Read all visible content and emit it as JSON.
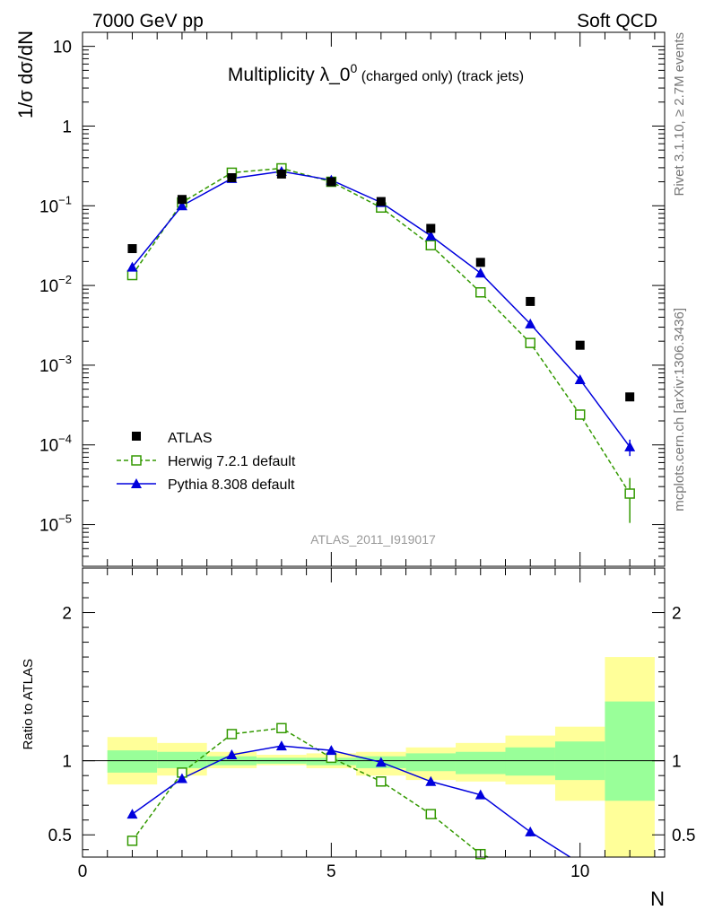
{
  "header": {
    "left": "7000 GeV pp",
    "right": "Soft QCD"
  },
  "side_labels": {
    "rivet": "Rivet 3.1.10, ≥ 2.7M events",
    "mcplots": "mcplots.cern.ch [arXiv:1306.3436]"
  },
  "colors": {
    "atlas": "#000000",
    "herwig": "#339900",
    "pythia": "#0000dd",
    "band_yellow": "#ffff99",
    "band_green": "#99ff99"
  },
  "chart_data": [
    {
      "type": "scatter",
      "title": "Multiplicity λ_0⁰ (charged only) (track jets)",
      "title_main": "Multiplicity λ_0",
      "title_sup": "0",
      "title_suffix": "(charged only) (track jets)",
      "ylabel": "1/σ dσ/dN",
      "y_scale": "log",
      "ylim": [
        3e-06,
        15
      ],
      "xlim": [
        0,
        11.7
      ],
      "y_tick_labels": [
        "10",
        "1",
        "10⁻¹",
        "10⁻²",
        "10⁻³",
        "10⁻⁴",
        "10⁻⁵"
      ],
      "watermark": "ATLAS_2011_I919017",
      "legend_position": "bottom-left",
      "series": [
        {
          "name": "ATLAS",
          "marker": "filled-square",
          "x": [
            1,
            2,
            3,
            4,
            5,
            6,
            7,
            8,
            9,
            10,
            11
          ],
          "y": [
            0.029,
            0.12,
            0.225,
            0.25,
            0.2,
            0.113,
            0.052,
            0.0195,
            0.0063,
            0.00178,
            0.0004
          ]
        },
        {
          "name": "Herwig 7.2.1 default",
          "marker": "open-square",
          "line": "dashed",
          "x": [
            1,
            2,
            3,
            4,
            5,
            6,
            7,
            8,
            9,
            10,
            11
          ],
          "y": [
            0.0135,
            0.11,
            0.26,
            0.295,
            0.2,
            0.095,
            0.032,
            0.0082,
            0.0019,
            0.00024,
            2.45e-05
          ],
          "err_low": [
            0,
            0,
            0,
            0,
            0,
            0,
            0,
            0,
            0,
            3e-05,
            1.4e-05
          ],
          "err_high": [
            0,
            0,
            0,
            0,
            0,
            0,
            0,
            0,
            0,
            3e-05,
            1.4e-05
          ]
        },
        {
          "name": "Pythia 8.308 default",
          "marker": "filled-triangle",
          "line": "solid",
          "x": [
            1,
            2,
            3,
            4,
            5,
            6,
            7,
            8,
            9,
            10,
            11
          ],
          "y": [
            0.017,
            0.1,
            0.22,
            0.27,
            0.21,
            0.11,
            0.042,
            0.0143,
            0.0033,
            0.00066,
            9.45e-05
          ],
          "err_low": [
            0,
            0,
            0,
            0,
            0,
            0,
            0,
            0,
            0,
            3e-05,
            2.2e-05
          ],
          "err_high": [
            0,
            0,
            0,
            0,
            0,
            0,
            0,
            0,
            0,
            3e-05,
            2.2e-05
          ]
        }
      ]
    },
    {
      "type": "scatter",
      "ylabel": "Ratio to ATLAS",
      "xlabel": "N",
      "ylim": [
        0.35,
        2.3
      ],
      "xlim": [
        0,
        11.7
      ],
      "x_tick_labels": [
        "0",
        "5",
        "10"
      ],
      "y_tick_labels": [
        "0.5",
        "1",
        "2"
      ],
      "bands": {
        "x_low": [
          0.5,
          1.5,
          2.5,
          3.5,
          4.5,
          5.5,
          6.5,
          7.5,
          8.5,
          9.5,
          10.5
        ],
        "x_high": [
          1.5,
          2.5,
          3.5,
          4.5,
          5.5,
          6.5,
          7.5,
          8.5,
          9.5,
          10.5,
          11.5
        ],
        "yellow_low": [
          0.84,
          0.9,
          0.95,
          0.97,
          0.95,
          0.9,
          0.87,
          0.86,
          0.84,
          0.73,
          0.32
        ],
        "yellow_high": [
          1.16,
          1.12,
          1.06,
          1.04,
          1.05,
          1.06,
          1.09,
          1.12,
          1.17,
          1.23,
          1.7
        ],
        "green_low": [
          0.92,
          0.95,
          0.97,
          0.98,
          0.97,
          0.95,
          0.93,
          0.91,
          0.9,
          0.87,
          0.73
        ],
        "green_high": [
          1.07,
          1.06,
          1.03,
          1.02,
          1.02,
          1.03,
          1.05,
          1.06,
          1.09,
          1.13,
          1.4
        ]
      },
      "series": [
        {
          "name": "Herwig 7.2.1 default",
          "x": [
            1,
            2,
            3,
            4,
            5,
            6,
            7,
            8
          ],
          "y": [
            0.46,
            0.92,
            1.18,
            1.22,
            1.02,
            0.86,
            0.64,
            0.37
          ],
          "clipped_to": [
            8.15,
            0.35
          ]
        },
        {
          "name": "Pythia 8.308 default",
          "x": [
            1,
            2,
            3,
            4,
            5,
            6,
            7,
            8,
            9
          ],
          "y": [
            0.64,
            0.88,
            1.04,
            1.1,
            1.07,
            0.99,
            0.86,
            0.77,
            0.52
          ],
          "err": [
            0,
            0,
            0,
            0,
            0,
            0,
            0,
            0,
            0.03
          ],
          "clipped_to": [
            9.8,
            0.35
          ]
        }
      ]
    }
  ]
}
